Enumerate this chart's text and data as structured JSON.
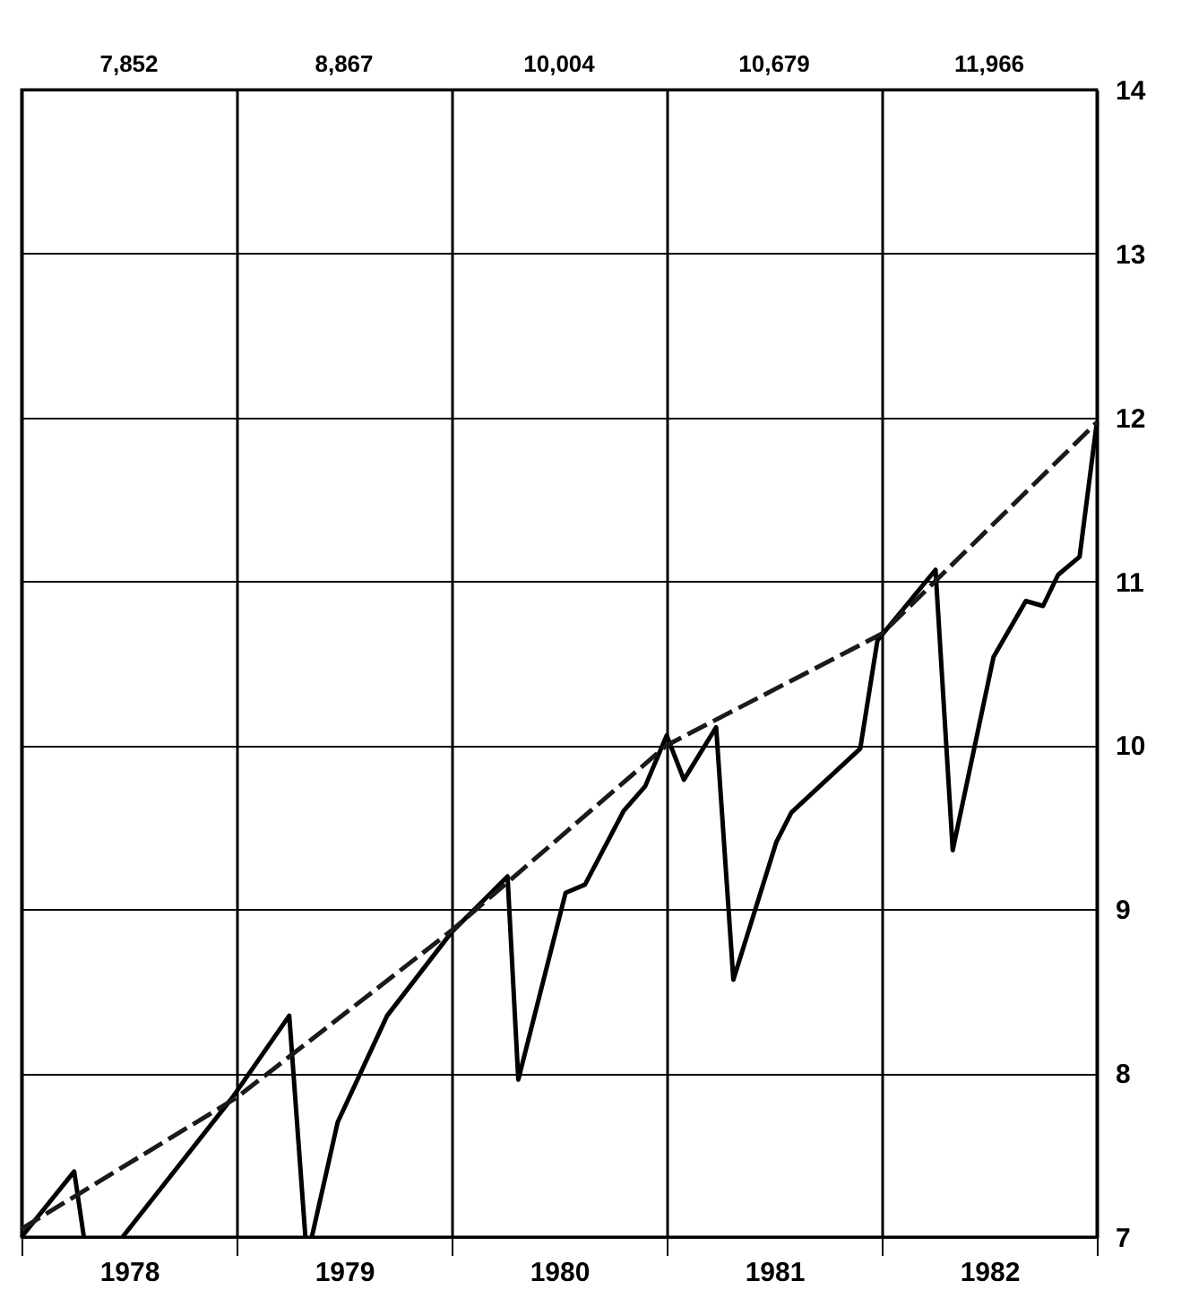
{
  "chart_data": {
    "type": "line",
    "xlim": [
      1978,
      1983
    ],
    "ylim": [
      7,
      14
    ],
    "xticks": [
      {
        "value": 1978,
        "label": null
      },
      {
        "value": 1978.5,
        "label": "1978"
      },
      {
        "value": 1979,
        "label": null
      },
      {
        "value": 1979.5,
        "label": "1979"
      },
      {
        "value": 1980,
        "label": null
      },
      {
        "value": 1980.5,
        "label": "1980"
      },
      {
        "value": 1981,
        "label": null
      },
      {
        "value": 1981.5,
        "label": "1981"
      },
      {
        "value": 1982,
        "label": null
      },
      {
        "value": 1982.5,
        "label": "1982"
      },
      {
        "value": 1983,
        "label": null
      }
    ],
    "yticks": [
      7,
      8,
      9,
      10,
      11,
      12,
      13,
      14
    ],
    "grid": true,
    "annotations": [
      "7,852",
      "8,867",
      "10,004",
      "10,679",
      "11,966"
    ],
    "series": [
      {
        "color": "#000000",
        "line_style": "solid",
        "x": [
          1978,
          1978.245,
          1978.29,
          1978.38,
          1978.47,
          1978.98,
          1979.245,
          1979.32,
          1979.33,
          1979.35,
          1979.47,
          1979.7,
          1980,
          1980.26,
          1980.31,
          1980.53,
          1980.62,
          1980.8,
          1980.9,
          1981,
          1981.08,
          1981.23,
          1981.31,
          1981.51,
          1981.58,
          1981.9,
          1981.98,
          1982.25,
          1982.33,
          1982.52,
          1982.67,
          1982.75,
          1982.82,
          1982.92,
          1983
        ],
        "values": [
          7.0,
          7.4,
          7.0,
          null,
          7.0,
          7.85,
          8.35,
          7.0,
          null,
          7.0,
          7.7,
          8.35,
          8.86,
          9.2,
          7.96,
          9.1,
          9.15,
          9.6,
          9.75,
          10.06,
          9.79,
          10.11,
          8.57,
          9.41,
          9.59,
          9.98,
          10.64,
          11.07,
          9.36,
          10.54,
          10.88,
          10.85,
          11.04,
          11.15,
          11.97
        ]
      },
      {
        "color": "#1a1a1a",
        "line_style": "dashed",
        "x": [
          1978,
          1979,
          1980,
          1981,
          1982,
          1983
        ],
        "values": [
          7.05,
          7.85,
          8.87,
          10.0,
          10.68,
          11.97
        ]
      }
    ]
  }
}
